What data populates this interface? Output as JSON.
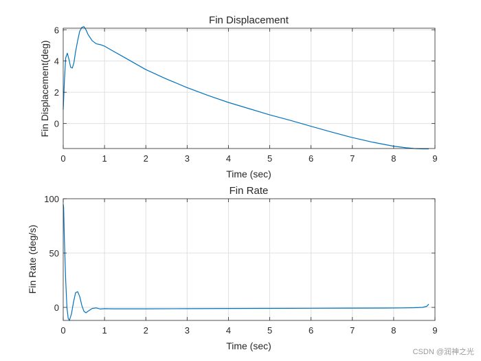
{
  "watermark": "CSDN @润神之光",
  "style": {
    "line_color": "#0072BD",
    "grid_color": "#e0e0e0",
    "axis_color": "#262626"
  },
  "chart_data": [
    {
      "type": "line",
      "title": "Fin Displacement",
      "xlabel": "Time (sec)",
      "ylabel": "Fin Displacement(deg)",
      "xlim": [
        0,
        9
      ],
      "ylim": [
        -1.6,
        6.1
      ],
      "xticks": [
        0,
        1,
        2,
        3,
        4,
        5,
        6,
        7,
        8,
        9
      ],
      "xtick_labels": [
        "0",
        "1",
        "2",
        "3",
        "4",
        "5",
        "6",
        "7",
        "8",
        "9"
      ],
      "yticks": [
        0,
        2,
        4,
        6
      ],
      "ytick_labels": [
        "0",
        "2",
        "4",
        "6"
      ],
      "grid": true,
      "series": [
        {
          "name": "Fin Displacement",
          "x": [
            0,
            0.03,
            0.06,
            0.1,
            0.14,
            0.18,
            0.22,
            0.26,
            0.3,
            0.35,
            0.4,
            0.45,
            0.5,
            0.55,
            0.6,
            0.7,
            0.8,
            0.9,
            1.0,
            1.2,
            1.5,
            2.0,
            2.5,
            3.0,
            3.5,
            4.0,
            4.5,
            5.0,
            5.5,
            6.0,
            6.5,
            7.0,
            7.5,
            8.0,
            8.3,
            8.5,
            8.7,
            8.85
          ],
          "y": [
            0.9,
            2.8,
            4.2,
            4.5,
            4.1,
            3.6,
            3.55,
            3.9,
            4.6,
            5.3,
            5.9,
            6.15,
            6.2,
            6.0,
            5.7,
            5.3,
            5.1,
            5.05,
            4.95,
            4.65,
            4.2,
            3.45,
            2.85,
            2.3,
            1.8,
            1.35,
            0.95,
            0.55,
            0.2,
            -0.18,
            -0.55,
            -0.9,
            -1.2,
            -1.45,
            -1.55,
            -1.6,
            -1.62,
            -1.62
          ]
        }
      ]
    },
    {
      "type": "line",
      "title": "Fin Rate",
      "xlabel": "Time (sec)",
      "ylabel": "Fin Rate (deg/s)",
      "xlim": [
        0,
        9
      ],
      "ylim": [
        -12,
        100
      ],
      "xticks": [
        0,
        1,
        2,
        3,
        4,
        5,
        6,
        7,
        8,
        9
      ],
      "xtick_labels": [
        "0",
        "1",
        "2",
        "3",
        "4",
        "5",
        "6",
        "7",
        "8",
        "9"
      ],
      "yticks": [
        0,
        50,
        100
      ],
      "ytick_labels": [
        "0",
        "50",
        "100"
      ],
      "grid": true,
      "series": [
        {
          "name": "Fin Rate",
          "x": [
            0,
            0.01,
            0.03,
            0.06,
            0.09,
            0.12,
            0.15,
            0.2,
            0.25,
            0.3,
            0.35,
            0.4,
            0.45,
            0.5,
            0.55,
            0.6,
            0.7,
            0.8,
            0.9,
            1.0,
            1.2,
            1.5,
            2.0,
            3.0,
            4.0,
            5.0,
            6.0,
            7.0,
            7.8,
            8.2,
            8.5,
            8.7,
            8.8,
            8.85
          ],
          "y": [
            95,
            92,
            60,
            25,
            0,
            -10,
            -12,
            -6,
            5,
            13.5,
            14.5,
            10,
            2,
            -3.5,
            -5,
            -3.5,
            -1,
            -0.5,
            -1.5,
            -1.2,
            -1.3,
            -1.3,
            -1.3,
            -1.2,
            -1.0,
            -0.9,
            -0.8,
            -0.7,
            -0.6,
            -0.5,
            -0.3,
            0,
            1,
            3
          ]
        }
      ]
    }
  ]
}
